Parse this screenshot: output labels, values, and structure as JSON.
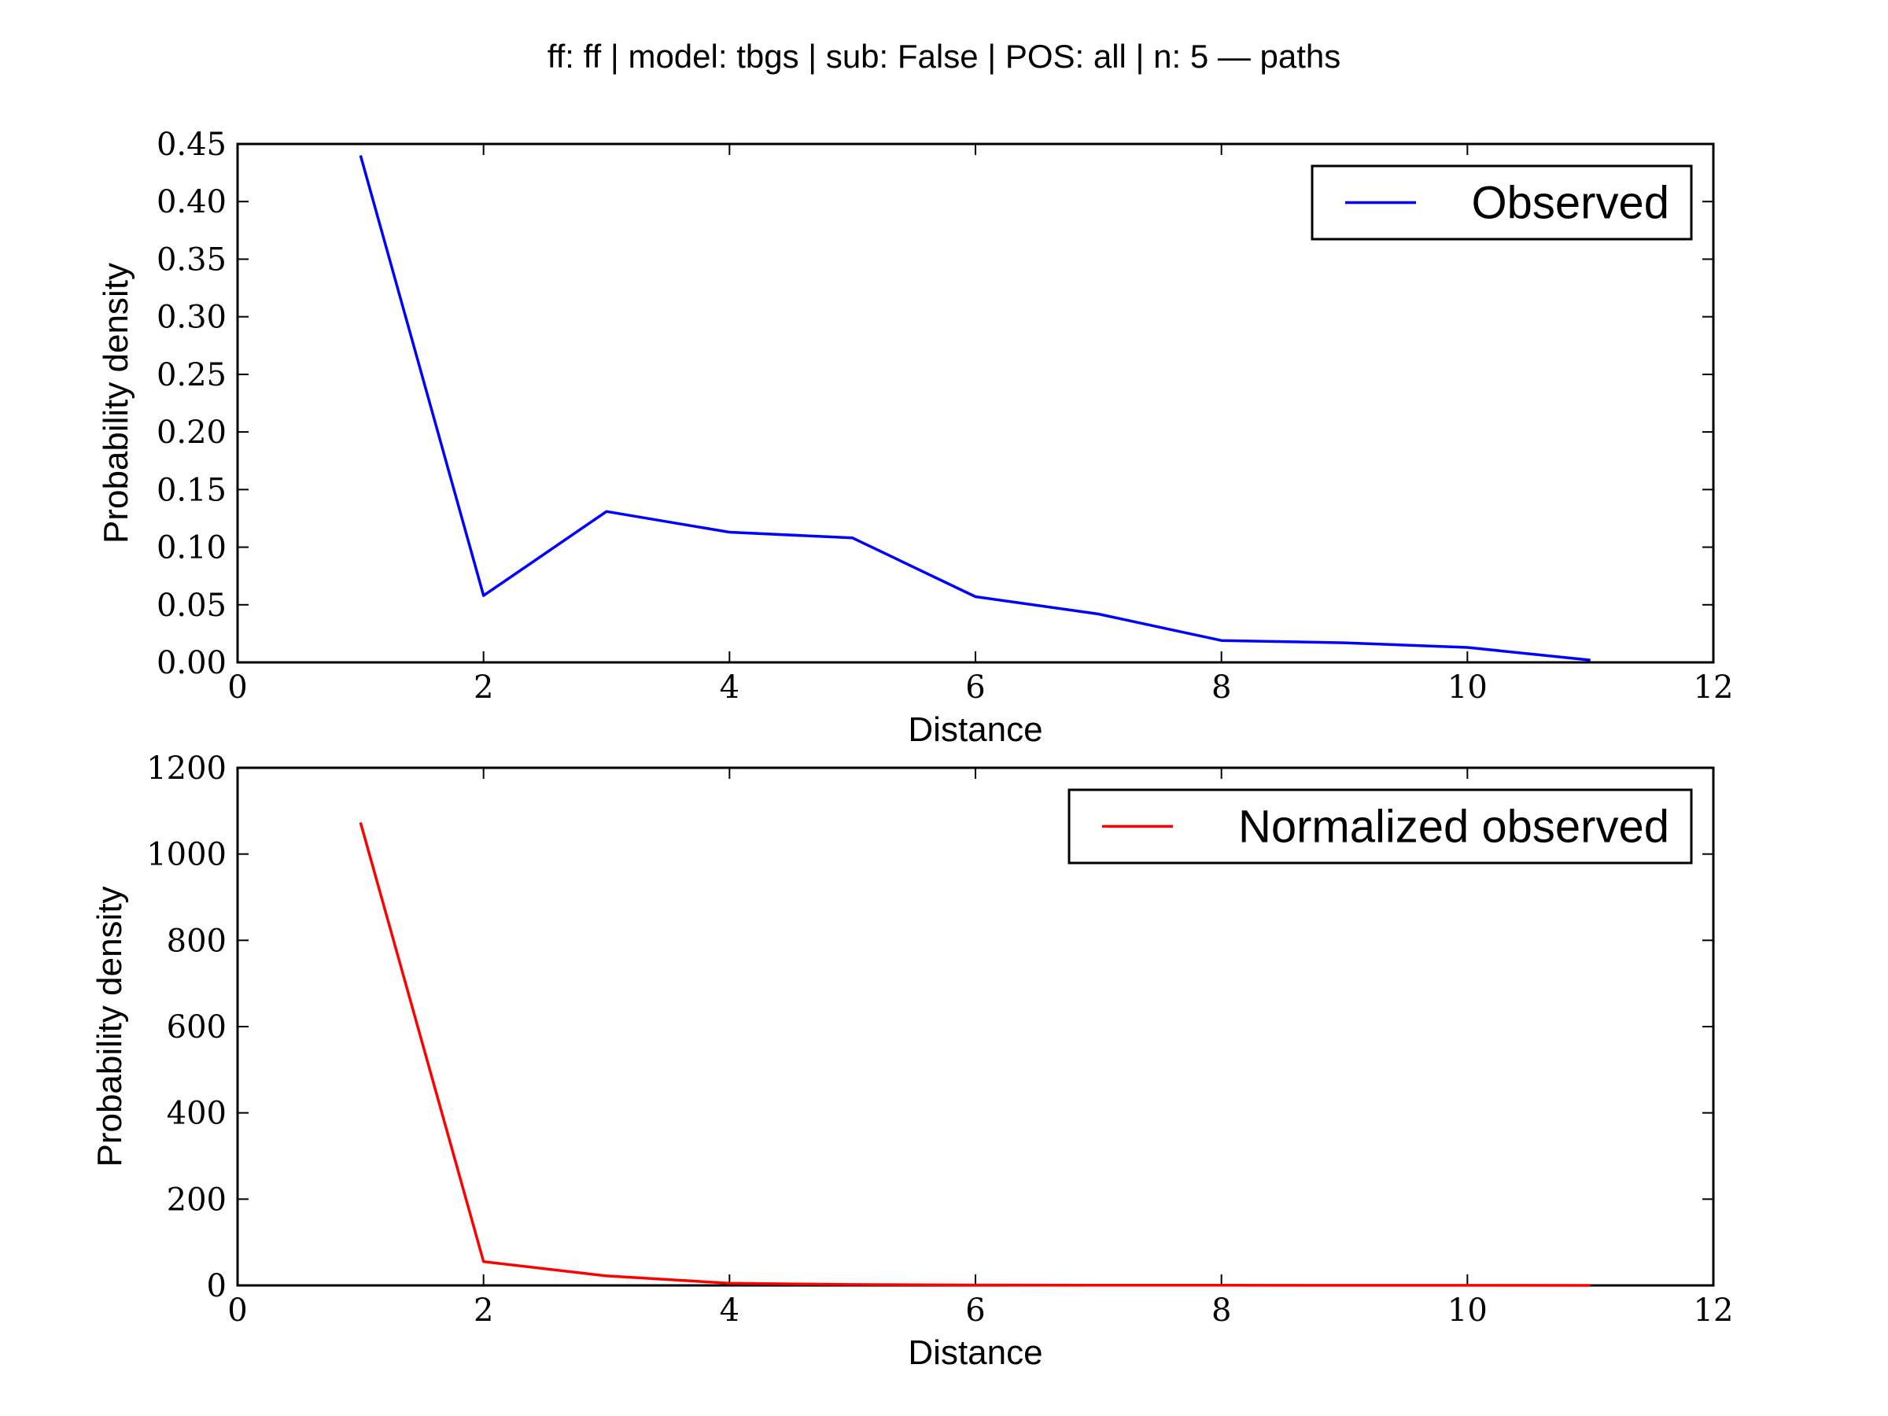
{
  "figure": {
    "title": "ff: ff | model: tbgs | sub: False | POS: all | n: 5 — paths"
  },
  "chart_data": [
    {
      "type": "line",
      "title": "",
      "xlabel": "Distance",
      "ylabel": "Probability density",
      "xlim": [
        0,
        12
      ],
      "ylim": [
        0,
        0.45
      ],
      "xticks": [
        "0",
        "2",
        "4",
        "6",
        "8",
        "10",
        "12"
      ],
      "yticks": [
        "0.00",
        "0.05",
        "0.10",
        "0.15",
        "0.20",
        "0.25",
        "0.30",
        "0.35",
        "0.40",
        "0.45"
      ],
      "grid": false,
      "legend": "top-right",
      "series": [
        {
          "name": "Observed",
          "color": "#0000ff",
          "x": [
            1,
            2,
            3,
            4,
            5,
            6,
            7,
            8,
            9,
            10,
            11
          ],
          "values": [
            0.44,
            0.058,
            0.131,
            0.113,
            0.108,
            0.057,
            0.042,
            0.019,
            0.017,
            0.013,
            0.002
          ]
        }
      ]
    },
    {
      "type": "line",
      "title": "",
      "xlabel": "Distance",
      "ylabel": "Probability density",
      "xlim": [
        0,
        12
      ],
      "ylim": [
        0,
        1200
      ],
      "xticks": [
        "0",
        "2",
        "4",
        "6",
        "8",
        "10",
        "12"
      ],
      "yticks": [
        "0",
        "200",
        "400",
        "600",
        "800",
        "1000",
        "1200"
      ],
      "grid": false,
      "legend": "top-right",
      "series": [
        {
          "name": "Normalized observed",
          "color": "#ff0000",
          "x": [
            1,
            2,
            3,
            4,
            5,
            6,
            7,
            8,
            9,
            10,
            11
          ],
          "values": [
            1073,
            55,
            22,
            5,
            2,
            1,
            0.5,
            0.3,
            0.2,
            0.1,
            0.05
          ]
        }
      ]
    }
  ]
}
